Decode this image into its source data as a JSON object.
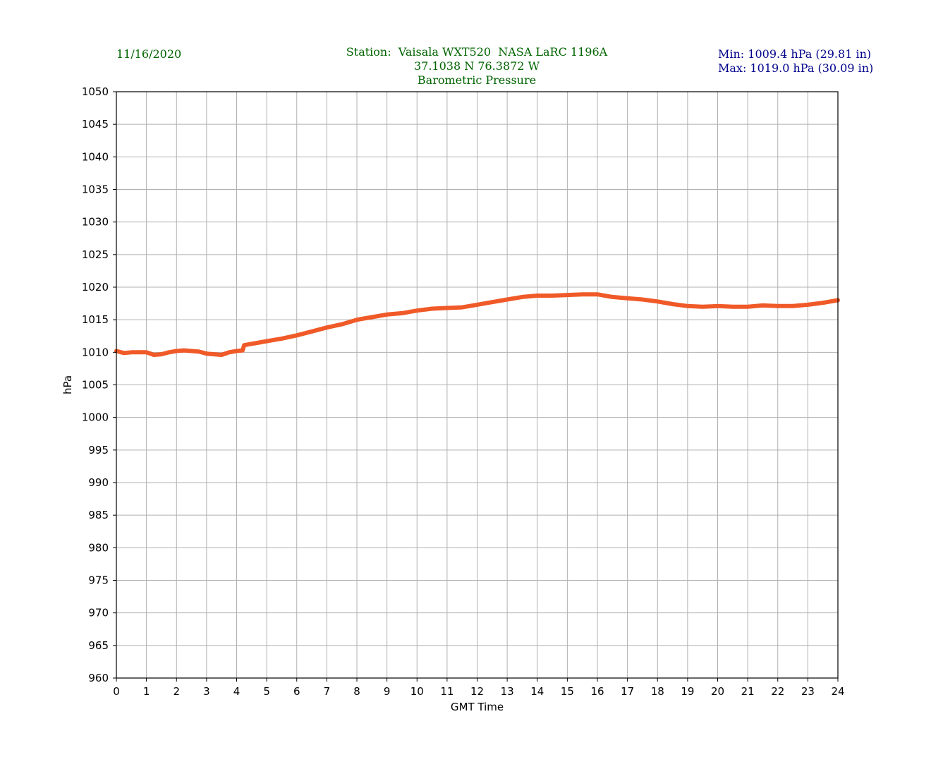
{
  "header": {
    "date": "11/16/2020",
    "station_line": "Station:  Vaisala WXT520  NASA LaRC 1196A",
    "coords_line": "37.1038 N 76.3872 W",
    "title_line": "Barometric Pressure",
    "min_line": "Min: 1009.4 hPa (29.81 in)",
    "max_line": "Max: 1019.0 hPa (30.09 in)"
  },
  "colors": {
    "header_green": "#006400",
    "stats_blue": "#00008b",
    "series": "#f05a28",
    "grid": "#b0b0b0"
  },
  "chart_data": {
    "type": "line",
    "title": "Barometric Pressure",
    "xlabel": "GMT Time",
    "ylabel": "hPa",
    "xlim": [
      0,
      24
    ],
    "ylim": [
      960,
      1050
    ],
    "xticks": [
      0,
      1,
      2,
      3,
      4,
      5,
      6,
      7,
      8,
      9,
      10,
      11,
      12,
      13,
      14,
      15,
      16,
      17,
      18,
      19,
      20,
      21,
      22,
      23,
      24
    ],
    "yticks": [
      960,
      965,
      970,
      975,
      980,
      985,
      990,
      995,
      1000,
      1005,
      1010,
      1015,
      1020,
      1025,
      1030,
      1035,
      1040,
      1045,
      1050
    ],
    "grid": true,
    "series": [
      {
        "x": [
          0,
          0.25,
          0.5,
          0.75,
          1.0,
          1.25,
          1.5,
          1.75,
          2.0,
          2.25,
          2.5,
          2.75,
          3.0,
          3.25,
          3.5,
          3.75,
          4.0,
          4.2,
          4.25,
          4.5,
          4.75,
          5.0,
          5.5,
          6.0,
          6.5,
          7.0,
          7.5,
          8.0,
          8.5,
          9.0,
          9.5,
          10.0,
          10.5,
          11.0,
          11.5,
          12.0,
          12.5,
          13.0,
          13.5,
          14.0,
          14.5,
          15.0,
          15.5,
          16.0,
          16.5,
          17.0,
          17.5,
          18.0,
          18.5,
          19.0,
          19.5,
          20.0,
          20.5,
          21.0,
          21.5,
          22.0,
          22.5,
          23.0,
          23.5,
          24.0
        ],
        "y": [
          1010.2,
          1009.9,
          1010.0,
          1010.0,
          1010.0,
          1009.6,
          1009.7,
          1010.0,
          1010.2,
          1010.3,
          1010.2,
          1010.1,
          1009.8,
          1009.7,
          1009.6,
          1010.0,
          1010.2,
          1010.3,
          1011.1,
          1011.3,
          1011.5,
          1011.7,
          1012.1,
          1012.6,
          1013.2,
          1013.8,
          1014.3,
          1015.0,
          1015.4,
          1015.8,
          1016.0,
          1016.4,
          1016.7,
          1016.8,
          1016.9,
          1017.3,
          1017.7,
          1018.1,
          1018.5,
          1018.7,
          1018.7,
          1018.8,
          1018.9,
          1018.9,
          1018.5,
          1018.3,
          1018.1,
          1017.8,
          1017.4,
          1017.1,
          1017.0,
          1017.1,
          1017.0,
          1017.0,
          1017.2,
          1017.1,
          1017.1,
          1017.3,
          1017.6,
          1018.0
        ]
      }
    ]
  }
}
